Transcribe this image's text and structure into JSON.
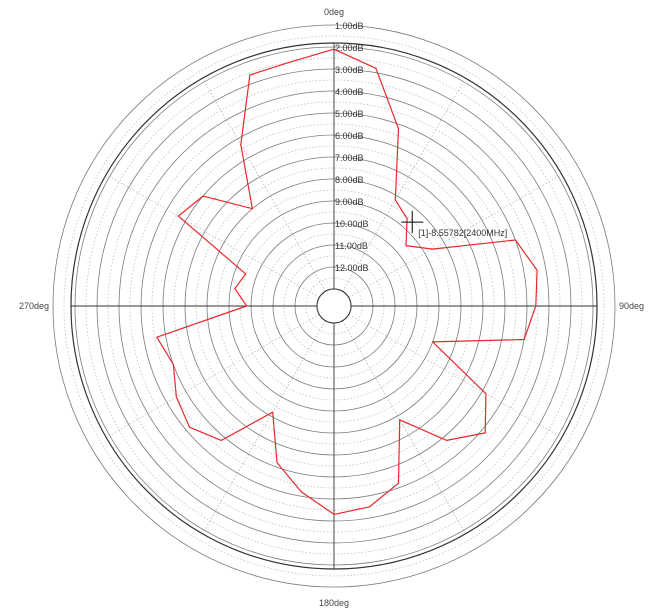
{
  "chart_data": {
    "type": "polar-line",
    "angle_labels": [
      "0deg",
      "90deg",
      "180deg",
      "270deg"
    ],
    "angle_label_angles": [
      0,
      90,
      180,
      270
    ],
    "ring_labels": [
      "1.00dB",
      "2.00dB",
      "3.00dB",
      "4.00dB",
      "5.00dB",
      "6.00dB",
      "7.00dB",
      "8.00dB",
      "9.00dB",
      "10.00dB",
      "11.00dB",
      "12.00dB"
    ],
    "ring_values": [
      1,
      2,
      3,
      4,
      5,
      6,
      7,
      8,
      9,
      10,
      11,
      12
    ],
    "r_range": [
      0,
      13
    ],
    "angular_direction": "clockwise",
    "zero_direction": "top",
    "grid": true,
    "series": [
      {
        "color": "#e8292b",
        "angles": [
          0,
          10,
          20,
          30,
          40,
          50,
          60,
          70,
          80,
          90,
          100,
          110,
          120,
          130,
          140,
          150,
          160,
          170,
          180,
          190,
          200,
          210,
          220,
          230,
          240,
          250,
          260,
          270,
          280,
          290,
          300,
          310,
          320,
          330,
          340,
          350,
          360
        ],
        "values": [
          2.1,
          2.8,
          5.2,
          8.2,
          8.6,
          9.5,
          8.6,
          5.0,
          4.4,
          4.6,
          5.0,
          9.0,
          5.8,
          4.8,
          5.8,
          7.8,
          5.2,
          4.5,
          4.3,
          5.2,
          6.2,
          8.2,
          5.8,
          5.2,
          5.5,
          6.0,
          5.6,
          9.8,
          9.2,
          9.5,
          5.6,
          6.0,
          8.0,
          5.3,
          2.6,
          2.5,
          2.1
        ]
      }
    ],
    "marker": {
      "label": "[1]-8.55782[2400MHz]",
      "angle": 43,
      "value": 8.55782
    }
  }
}
